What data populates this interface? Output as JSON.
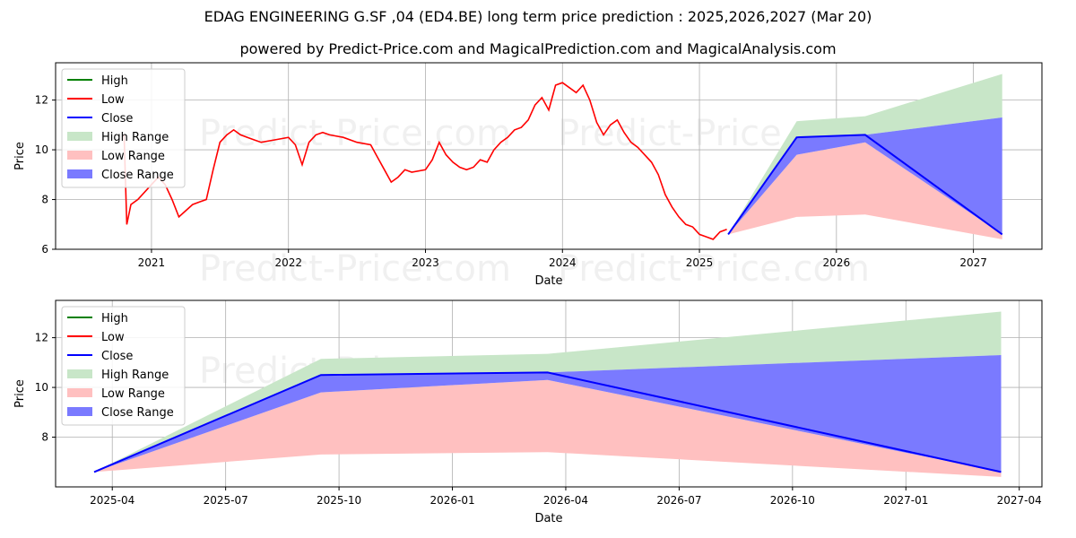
{
  "title": "EDAG ENGINEERING G.SF ,04 (ED4.BE) long term price prediction : 2025,2026,2027 (Mar 20)",
  "subtitle": "powered by Predict-Price.com and MagicalPrediction.com and MagicalAnalysis.com",
  "watermark": "Predict-Price.com",
  "colors": {
    "high": "#008000",
    "low": "#ff0000",
    "close": "#0000ff",
    "high_range": "#c8e6c8",
    "low_range": "#ffc0c0",
    "close_range": "#7a7aff",
    "grid": "#b0b0b0"
  },
  "chart_data": [
    {
      "type": "line",
      "xlabel": "Date",
      "ylabel": "Price",
      "xlim": [
        2020.3,
        2027.5
      ],
      "ylim": [
        6.0,
        13.5
      ],
      "x_ticks": [
        2021,
        2022,
        2023,
        2024,
        2025,
        2026,
        2027
      ],
      "x_tick_labels": [
        "2021",
        "2022",
        "2023",
        "2024",
        "2025",
        "2026",
        "2027"
      ],
      "y_ticks": [
        6,
        8,
        10,
        12
      ],
      "y_tick_labels": [
        "6",
        "8",
        "10",
        "12"
      ],
      "grid": true,
      "legend_position": "top-left",
      "legend": [
        "High",
        "Low",
        "Close",
        "High Range",
        "Low Range",
        "Close Range"
      ],
      "history_low": {
        "x": [
          2020.8,
          2020.82,
          2020.85,
          2020.9,
          2021.0,
          2021.05,
          2021.1,
          2021.15,
          2021.2,
          2021.3,
          2021.35,
          2021.4,
          2021.45,
          2021.5,
          2021.55,
          2021.6,
          2021.65,
          2021.7,
          2021.75,
          2021.8,
          2021.9,
          2022.0,
          2022.05,
          2022.1,
          2022.15,
          2022.2,
          2022.25,
          2022.3,
          2022.4,
          2022.5,
          2022.6,
          2022.65,
          2022.7,
          2022.75,
          2022.8,
          2022.85,
          2022.9,
          2023.0,
          2023.05,
          2023.1,
          2023.15,
          2023.2,
          2023.25,
          2023.3,
          2023.35,
          2023.4,
          2023.45,
          2023.5,
          2023.55,
          2023.6,
          2023.65,
          2023.7,
          2023.75,
          2023.8,
          2023.85,
          2023.9,
          2023.95,
          2024.0,
          2024.05,
          2024.1,
          2024.15,
          2024.2,
          2024.25,
          2024.3,
          2024.35,
          2024.4,
          2024.45,
          2024.5,
          2024.55,
          2024.6,
          2024.65,
          2024.7,
          2024.75,
          2024.8,
          2024.85,
          2024.9,
          2024.95,
          2025.0,
          2025.05,
          2025.1,
          2025.15,
          2025.2
        ],
        "y": [
          10.6,
          7.0,
          7.8,
          8.0,
          8.6,
          8.9,
          8.6,
          8.0,
          7.3,
          7.8,
          7.9,
          8.0,
          9.2,
          10.3,
          10.6,
          10.8,
          10.6,
          10.5,
          10.4,
          10.3,
          10.4,
          10.5,
          10.2,
          9.4,
          10.3,
          10.6,
          10.7,
          10.6,
          10.5,
          10.3,
          10.2,
          9.7,
          9.2,
          8.7,
          8.9,
          9.2,
          9.1,
          9.2,
          9.6,
          10.3,
          9.8,
          9.5,
          9.3,
          9.2,
          9.3,
          9.6,
          9.5,
          10.0,
          10.3,
          10.5,
          10.8,
          10.9,
          11.2,
          11.8,
          12.1,
          11.6,
          12.6,
          12.7,
          12.5,
          12.3,
          12.6,
          12.0,
          11.1,
          10.6,
          11.0,
          11.2,
          10.7,
          10.3,
          10.1,
          9.8,
          9.5,
          9.0,
          8.2,
          7.7,
          7.3,
          7.0,
          6.9,
          6.6,
          6.5,
          6.4,
          6.7,
          6.8
        ]
      },
      "forecast": {
        "x": [
          2025.21,
          2025.71,
          2026.21,
          2027.21
        ],
        "close": [
          6.6,
          10.5,
          10.6,
          6.6
        ],
        "high_range": {
          "upper": [
            6.6,
            11.15,
            11.35,
            13.05
          ],
          "lower": [
            6.6,
            10.5,
            10.6,
            11.3
          ]
        },
        "low_range": {
          "upper": [
            6.6,
            9.8,
            10.3,
            6.6
          ],
          "lower": [
            6.6,
            7.3,
            7.4,
            6.4
          ]
        },
        "close_range": {
          "upper": [
            6.6,
            10.5,
            10.6,
            11.3
          ],
          "lower": [
            6.6,
            9.8,
            10.3,
            6.6
          ]
        }
      }
    },
    {
      "type": "line",
      "xlabel": "Date",
      "ylabel": "Price",
      "xlim": [
        2025.125,
        2027.3
      ],
      "ylim": [
        6.0,
        13.5
      ],
      "x_ticks": [
        2025.25,
        2025.5,
        2025.75,
        2026.0,
        2026.25,
        2026.5,
        2026.75,
        2027.0,
        2027.25
      ],
      "x_tick_labels": [
        "2025-04",
        "2025-07",
        "2025-10",
        "2026-01",
        "2026-04",
        "2026-07",
        "2026-10",
        "2027-01",
        "2027-04"
      ],
      "y_ticks": [
        8,
        10,
        12
      ],
      "y_tick_labels": [
        "8",
        "10",
        "12"
      ],
      "grid": true,
      "legend_position": "top-left",
      "legend": [
        "High",
        "Low",
        "Close",
        "High Range",
        "Low Range",
        "Close Range"
      ],
      "forecast": {
        "x": [
          2025.21,
          2025.71,
          2026.21,
          2027.21
        ],
        "close": [
          6.6,
          10.5,
          10.6,
          6.6
        ],
        "high_range": {
          "upper": [
            6.6,
            11.15,
            11.35,
            13.05
          ],
          "lower": [
            6.6,
            10.5,
            10.6,
            11.3
          ]
        },
        "low_range": {
          "upper": [
            6.6,
            9.8,
            10.3,
            6.6
          ],
          "lower": [
            6.6,
            7.3,
            7.4,
            6.4
          ]
        },
        "close_range": {
          "upper": [
            6.6,
            10.5,
            10.6,
            11.3
          ],
          "lower": [
            6.6,
            9.8,
            10.3,
            6.6
          ]
        }
      }
    }
  ]
}
